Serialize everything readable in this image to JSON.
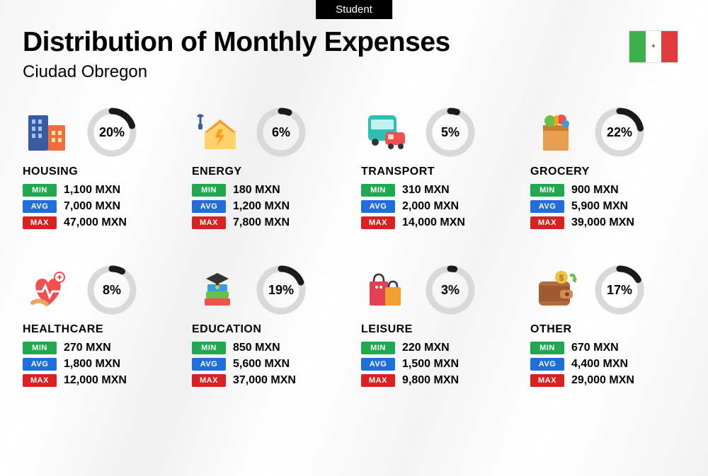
{
  "tag": "Student",
  "title": "Distribution of Monthly Expenses",
  "subtitle": "Ciudad Obregon",
  "currency": "MXN",
  "labels": {
    "min": "MIN",
    "avg": "AVG",
    "max": "MAX"
  },
  "label_colors": {
    "min": "#1fa84f",
    "avg": "#1e6fd9",
    "max": "#d92121"
  },
  "ring": {
    "track_color": "#d9d9d9",
    "progress_color": "#1a1a1a",
    "stroke_width": 9
  },
  "flag": {
    "left": "#3eb049",
    "middle": "#ffffff",
    "right": "#e03a3e"
  },
  "categories": [
    {
      "key": "housing",
      "name": "HOUSING",
      "percent": 20,
      "min": "1,100",
      "avg": "7,000",
      "max": "47,000",
      "icon": "buildings-icon"
    },
    {
      "key": "energy",
      "name": "ENERGY",
      "percent": 6,
      "min": "180",
      "avg": "1,200",
      "max": "7,800",
      "icon": "energy-house-icon"
    },
    {
      "key": "transport",
      "name": "TRANSPORT",
      "percent": 5,
      "min": "310",
      "avg": "2,000",
      "max": "14,000",
      "icon": "bus-car-icon"
    },
    {
      "key": "grocery",
      "name": "GROCERY",
      "percent": 22,
      "min": "900",
      "avg": "5,900",
      "max": "39,000",
      "icon": "grocery-bag-icon"
    },
    {
      "key": "healthcare",
      "name": "HEALTHCARE",
      "percent": 8,
      "min": "270",
      "avg": "1,800",
      "max": "12,000",
      "icon": "healthcare-heart-icon"
    },
    {
      "key": "education",
      "name": "EDUCATION",
      "percent": 19,
      "min": "850",
      "avg": "5,600",
      "max": "37,000",
      "icon": "graduation-books-icon"
    },
    {
      "key": "leisure",
      "name": "LEISURE",
      "percent": 3,
      "min": "220",
      "avg": "1,500",
      "max": "9,800",
      "icon": "shopping-bags-icon"
    },
    {
      "key": "other",
      "name": "OTHER",
      "percent": 17,
      "min": "670",
      "avg": "4,400",
      "max": "29,000",
      "icon": "wallet-icon"
    }
  ]
}
